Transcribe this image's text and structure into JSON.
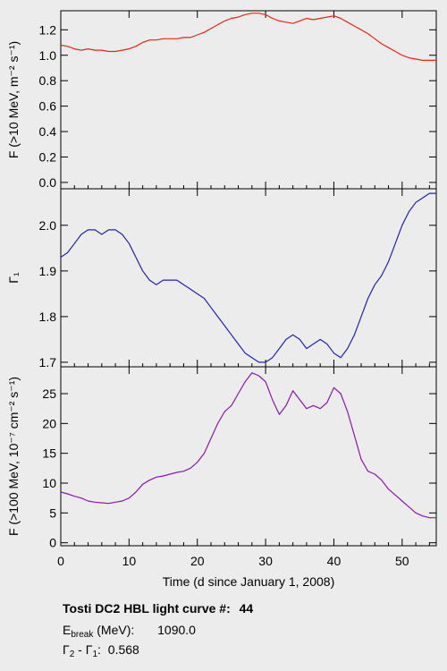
{
  "chart_data": {
    "type": "line",
    "xlabel": "Time (d since January 1, 2008)",
    "xlim": [
      0,
      55
    ],
    "xticks": [
      0,
      10,
      20,
      30,
      40,
      50
    ],
    "x": [
      0,
      1,
      2,
      3,
      4,
      5,
      6,
      7,
      8,
      9,
      10,
      11,
      12,
      13,
      14,
      15,
      16,
      17,
      18,
      19,
      20,
      21,
      22,
      23,
      24,
      25,
      26,
      27,
      28,
      29,
      30,
      31,
      32,
      33,
      34,
      35,
      36,
      37,
      38,
      39,
      40,
      41,
      42,
      43,
      44,
      45,
      46,
      47,
      48,
      49,
      50,
      51,
      52,
      53,
      54,
      55
    ],
    "panels": [
      {
        "ylabel": "F (>10 MeV, m⁻² s⁻¹)",
        "ylim": [
          -0.05,
          1.35
        ],
        "yticks": [
          "0.0",
          "0.2",
          "0.4",
          "0.6",
          "0.8",
          "1.0",
          "1.2"
        ],
        "color": "#e8241c",
        "series": [
          1.08,
          1.07,
          1.05,
          1.04,
          1.05,
          1.04,
          1.04,
          1.03,
          1.03,
          1.04,
          1.05,
          1.07,
          1.1,
          1.12,
          1.12,
          1.13,
          1.13,
          1.13,
          1.14,
          1.14,
          1.16,
          1.18,
          1.21,
          1.24,
          1.27,
          1.29,
          1.3,
          1.32,
          1.33,
          1.33,
          1.32,
          1.29,
          1.27,
          1.26,
          1.25,
          1.27,
          1.29,
          1.28,
          1.29,
          1.3,
          1.31,
          1.29,
          1.26,
          1.23,
          1.2,
          1.17,
          1.13,
          1.09,
          1.06,
          1.03,
          1.0,
          0.98,
          0.97,
          0.96,
          0.96,
          0.96
        ]
      },
      {
        "ylabel": "Γ₁",
        "ylim": [
          1.69,
          2.08
        ],
        "yticks": [
          "1.7",
          "1.8",
          "1.9",
          "2.0"
        ],
        "color": "#2020c0",
        "series": [
          1.93,
          1.94,
          1.96,
          1.98,
          1.99,
          1.99,
          1.98,
          1.99,
          1.99,
          1.98,
          1.96,
          1.93,
          1.9,
          1.88,
          1.87,
          1.88,
          1.88,
          1.88,
          1.87,
          1.86,
          1.85,
          1.84,
          1.82,
          1.8,
          1.78,
          1.76,
          1.74,
          1.72,
          1.71,
          1.7,
          1.7,
          1.71,
          1.73,
          1.75,
          1.76,
          1.75,
          1.73,
          1.74,
          1.75,
          1.74,
          1.72,
          1.71,
          1.73,
          1.76,
          1.8,
          1.84,
          1.87,
          1.89,
          1.92,
          1.96,
          2.0,
          2.03,
          2.05,
          2.06,
          2.07,
          2.07
        ]
      },
      {
        "ylabel": "F (>100 MeV, 10⁻⁷ cm⁻² s⁻¹)",
        "ylim": [
          -0.5,
          29.5
        ],
        "yticks": [
          "0",
          "5",
          "10",
          "15",
          "20",
          "25"
        ],
        "color": "#8a18b0",
        "series": [
          8.5,
          8.2,
          7.8,
          7.5,
          7.0,
          6.8,
          6.7,
          6.6,
          6.8,
          7.0,
          7.5,
          8.5,
          9.8,
          10.5,
          11.0,
          11.2,
          11.5,
          11.8,
          12.0,
          12.5,
          13.5,
          15.0,
          17.5,
          20.0,
          22.0,
          23.0,
          25.0,
          27.0,
          28.5,
          28.0,
          27.0,
          24.0,
          21.5,
          23.0,
          25.5,
          24.0,
          22.5,
          23.0,
          22.5,
          23.5,
          26.0,
          25.0,
          22.0,
          18.0,
          14.0,
          12.0,
          11.5,
          10.5,
          9.0,
          8.0,
          7.0,
          6.0,
          5.0,
          4.5,
          4.2,
          4.2
        ]
      }
    ]
  },
  "caption": {
    "title_text": "Tosti DC2 HBL light curve #:",
    "curve_number": "44",
    "ebreak_symbol": "E",
    "ebreak_sub": "break",
    "ebreak_unit": " (MeV):",
    "ebreak_value": "1090.0",
    "gdiff_g2": "Γ",
    "gdiff_g2_sub": "2",
    "gdiff_minus": " - ",
    "gdiff_g1": "Γ",
    "gdiff_g1_sub": "1",
    "gdiff_colon": ":",
    "gdiff_value": "0.568"
  }
}
